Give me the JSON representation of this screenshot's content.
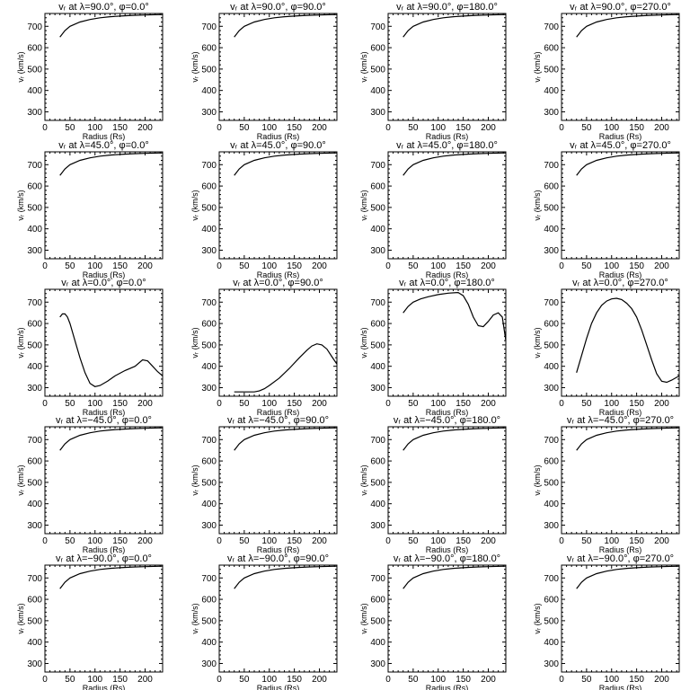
{
  "chart_data": [
    {
      "type": "line",
      "title": "vᵣ at λ=90.0°, φ=0.0°",
      "xlabel": "Radius (Rs)",
      "ylabel": "vᵣ (km/s)",
      "xlim": [
        0,
        235
      ],
      "ylim": [
        260,
        760
      ],
      "xticks": [
        0,
        50,
        100,
        150,
        200
      ],
      "yticks": [
        300,
        400,
        500,
        600,
        700
      ],
      "series": [
        {
          "x": [
            30,
            40,
            50,
            70,
            90,
            110,
            130,
            150,
            175,
            200,
            235
          ],
          "values": [
            650,
            680,
            700,
            720,
            732,
            740,
            745,
            748,
            751,
            753,
            755
          ]
        }
      ]
    },
    {
      "type": "line",
      "title": "vᵣ at λ=90.0°, φ=90.0°",
      "xlabel": "Radius (Rs)",
      "ylabel": "vᵣ (km/s)",
      "xlim": [
        0,
        235
      ],
      "ylim": [
        260,
        760
      ],
      "xticks": [
        0,
        50,
        100,
        150,
        200
      ],
      "yticks": [
        300,
        400,
        500,
        600,
        700
      ],
      "series": [
        {
          "x": [
            30,
            40,
            50,
            70,
            90,
            110,
            130,
            150,
            175,
            200,
            235
          ],
          "values": [
            650,
            680,
            700,
            720,
            732,
            740,
            745,
            748,
            751,
            753,
            755
          ]
        }
      ]
    },
    {
      "type": "line",
      "title": "vᵣ at λ=90.0°, φ=180.0°",
      "xlabel": "Radius (Rs)",
      "ylabel": "vᵣ (km/s)",
      "xlim": [
        0,
        235
      ],
      "ylim": [
        260,
        760
      ],
      "xticks": [
        0,
        50,
        100,
        150,
        200
      ],
      "yticks": [
        300,
        400,
        500,
        600,
        700
      ],
      "series": [
        {
          "x": [
            30,
            40,
            50,
            70,
            90,
            110,
            130,
            150,
            175,
            200,
            235
          ],
          "values": [
            650,
            680,
            700,
            720,
            732,
            740,
            745,
            748,
            751,
            753,
            755
          ]
        }
      ]
    },
    {
      "type": "line",
      "title": "vᵣ at λ=90.0°, φ=270.0°",
      "xlabel": "Radius (Rs)",
      "ylabel": "vᵣ (km/s)",
      "xlim": [
        0,
        235
      ],
      "ylim": [
        260,
        760
      ],
      "xticks": [
        0,
        50,
        100,
        150,
        200
      ],
      "yticks": [
        300,
        400,
        500,
        600,
        700
      ],
      "series": [
        {
          "x": [
            30,
            40,
            50,
            70,
            90,
            110,
            130,
            150,
            175,
            200,
            235
          ],
          "values": [
            650,
            680,
            700,
            720,
            732,
            740,
            745,
            748,
            751,
            753,
            755
          ]
        }
      ]
    },
    {
      "type": "line",
      "title": "vᵣ at λ=45.0°, φ=0.0°",
      "xlabel": "Radius (Rs)",
      "ylabel": "vᵣ (km/s)",
      "xlim": [
        0,
        235
      ],
      "ylim": [
        260,
        760
      ],
      "xticks": [
        0,
        50,
        100,
        150,
        200
      ],
      "yticks": [
        300,
        400,
        500,
        600,
        700
      ],
      "series": [
        {
          "x": [
            30,
            40,
            50,
            70,
            90,
            110,
            130,
            150,
            175,
            200,
            235
          ],
          "values": [
            650,
            680,
            700,
            720,
            732,
            740,
            745,
            748,
            751,
            753,
            755
          ]
        }
      ]
    },
    {
      "type": "line",
      "title": "vᵣ at λ=45.0°, φ=90.0°",
      "xlabel": "Radius (Rs)",
      "ylabel": "vᵣ (km/s)",
      "xlim": [
        0,
        235
      ],
      "ylim": [
        260,
        760
      ],
      "xticks": [
        0,
        50,
        100,
        150,
        200
      ],
      "yticks": [
        300,
        400,
        500,
        600,
        700
      ],
      "series": [
        {
          "x": [
            30,
            40,
            50,
            70,
            90,
            110,
            130,
            150,
            175,
            200,
            235
          ],
          "values": [
            650,
            680,
            700,
            720,
            732,
            740,
            745,
            748,
            751,
            753,
            755
          ]
        }
      ]
    },
    {
      "type": "line",
      "title": "vᵣ at λ=45.0°, φ=180.0°",
      "xlabel": "Radius (Rs)",
      "ylabel": "vᵣ (km/s)",
      "xlim": [
        0,
        235
      ],
      "ylim": [
        260,
        760
      ],
      "xticks": [
        0,
        50,
        100,
        150,
        200
      ],
      "yticks": [
        300,
        400,
        500,
        600,
        700
      ],
      "series": [
        {
          "x": [
            30,
            40,
            50,
            70,
            90,
            110,
            130,
            150,
            175,
            200,
            235
          ],
          "values": [
            650,
            680,
            700,
            720,
            732,
            740,
            745,
            748,
            751,
            753,
            755
          ]
        }
      ]
    },
    {
      "type": "line",
      "title": "vᵣ at λ=45.0°, φ=270.0°",
      "xlabel": "Radius (Rs)",
      "ylabel": "vᵣ (km/s)",
      "xlim": [
        0,
        235
      ],
      "ylim": [
        260,
        760
      ],
      "xticks": [
        0,
        50,
        100,
        150,
        200
      ],
      "yticks": [
        300,
        400,
        500,
        600,
        700
      ],
      "series": [
        {
          "x": [
            30,
            40,
            50,
            70,
            90,
            110,
            130,
            150,
            175,
            200,
            235
          ],
          "values": [
            650,
            680,
            700,
            720,
            732,
            740,
            745,
            748,
            751,
            753,
            755
          ]
        }
      ]
    },
    {
      "type": "line",
      "title": "vᵣ at λ=0.0°, φ=0.0°",
      "xlabel": "Radius (Rs)",
      "ylabel": "vᵣ (km/s)",
      "xlim": [
        0,
        235
      ],
      "ylim": [
        260,
        760
      ],
      "xticks": [
        0,
        50,
        100,
        150,
        200
      ],
      "yticks": [
        300,
        400,
        500,
        600,
        700
      ],
      "series": [
        {
          "x": [
            30,
            35,
            40,
            45,
            50,
            60,
            70,
            80,
            90,
            100,
            110,
            125,
            140,
            160,
            180,
            195,
            205,
            215,
            225,
            235
          ],
          "values": [
            630,
            645,
            645,
            630,
            600,
            520,
            440,
            370,
            320,
            305,
            310,
            330,
            355,
            380,
            400,
            430,
            425,
            400,
            375,
            355
          ]
        }
      ]
    },
    {
      "type": "line",
      "title": "vᵣ at λ=0.0°, φ=90.0°",
      "xlabel": "Radius (Rs)",
      "ylabel": "vᵣ (km/s)",
      "xlim": [
        0,
        235
      ],
      "ylim": [
        260,
        760
      ],
      "xticks": [
        0,
        50,
        100,
        150,
        200
      ],
      "yticks": [
        300,
        400,
        500,
        600,
        700
      ],
      "series": [
        {
          "x": [
            30,
            40,
            50,
            60,
            70,
            80,
            90,
            100,
            120,
            140,
            160,
            175,
            185,
            195,
            205,
            215,
            225,
            235
          ],
          "values": [
            280,
            280,
            280,
            280,
            280,
            285,
            295,
            310,
            345,
            390,
            440,
            475,
            495,
            505,
            500,
            480,
            445,
            410
          ]
        }
      ]
    },
    {
      "type": "line",
      "title": "vᵣ at λ=0.0°, φ=180.0°",
      "xlabel": "Radius (Rs)",
      "ylabel": "vᵣ (km/s)",
      "xlim": [
        0,
        235
      ],
      "ylim": [
        260,
        760
      ],
      "xticks": [
        0,
        50,
        100,
        150,
        200
      ],
      "yticks": [
        300,
        400,
        500,
        600,
        700
      ],
      "series": [
        {
          "x": [
            30,
            40,
            50,
            65,
            80,
            100,
            120,
            140,
            150,
            160,
            170,
            180,
            190,
            200,
            210,
            220,
            228,
            235
          ],
          "values": [
            650,
            680,
            700,
            715,
            725,
            735,
            742,
            745,
            730,
            690,
            630,
            590,
            585,
            610,
            640,
            650,
            630,
            520
          ]
        }
      ]
    },
    {
      "type": "line",
      "title": "vᵣ at λ=0.0°, φ=270.0°",
      "xlabel": "Radius (Rs)",
      "ylabel": "vᵣ (km/s)",
      "xlim": [
        0,
        235
      ],
      "ylim": [
        260,
        760
      ],
      "xticks": [
        0,
        50,
        100,
        150,
        200
      ],
      "yticks": [
        300,
        400,
        500,
        600,
        700
      ],
      "series": [
        {
          "x": [
            30,
            40,
            50,
            60,
            70,
            80,
            90,
            100,
            110,
            120,
            130,
            140,
            150,
            160,
            170,
            180,
            190,
            200,
            210,
            220,
            235
          ],
          "values": [
            370,
            450,
            530,
            600,
            650,
            685,
            705,
            715,
            718,
            712,
            695,
            670,
            630,
            570,
            500,
            430,
            365,
            330,
            325,
            335,
            355
          ]
        }
      ]
    },
    {
      "type": "line",
      "title": "vᵣ at λ=−45.0°, φ=0.0°",
      "xlabel": "Radius (Rs)",
      "ylabel": "vᵣ (km/s)",
      "xlim": [
        0,
        235
      ],
      "ylim": [
        260,
        760
      ],
      "xticks": [
        0,
        50,
        100,
        150,
        200
      ],
      "yticks": [
        300,
        400,
        500,
        600,
        700
      ],
      "series": [
        {
          "x": [
            30,
            40,
            50,
            70,
            90,
            110,
            130,
            150,
            175,
            200,
            235
          ],
          "values": [
            650,
            680,
            700,
            720,
            732,
            740,
            745,
            748,
            751,
            753,
            755
          ]
        }
      ]
    },
    {
      "type": "line",
      "title": "vᵣ at λ=−45.0°, φ=90.0°",
      "xlabel": "Radius (Rs)",
      "ylabel": "vᵣ (km/s)",
      "xlim": [
        0,
        235
      ],
      "ylim": [
        260,
        760
      ],
      "xticks": [
        0,
        50,
        100,
        150,
        200
      ],
      "yticks": [
        300,
        400,
        500,
        600,
        700
      ],
      "series": [
        {
          "x": [
            30,
            40,
            50,
            70,
            90,
            110,
            130,
            150,
            175,
            200,
            235
          ],
          "values": [
            650,
            680,
            700,
            720,
            732,
            740,
            745,
            748,
            751,
            753,
            755
          ]
        }
      ]
    },
    {
      "type": "line",
      "title": "vᵣ at λ=−45.0°, φ=180.0°",
      "xlabel": "Radius (Rs)",
      "ylabel": "vᵣ (km/s)",
      "xlim": [
        0,
        235
      ],
      "ylim": [
        260,
        760
      ],
      "xticks": [
        0,
        50,
        100,
        150,
        200
      ],
      "yticks": [
        300,
        400,
        500,
        600,
        700
      ],
      "series": [
        {
          "x": [
            30,
            40,
            50,
            70,
            90,
            110,
            130,
            150,
            175,
            200,
            235
          ],
          "values": [
            650,
            680,
            700,
            720,
            732,
            740,
            745,
            748,
            751,
            753,
            755
          ]
        }
      ]
    },
    {
      "type": "line",
      "title": "vᵣ at λ=−45.0°, φ=270.0°",
      "xlabel": "Radius (Rs)",
      "ylabel": "vᵣ (km/s)",
      "xlim": [
        0,
        235
      ],
      "ylim": [
        260,
        760
      ],
      "xticks": [
        0,
        50,
        100,
        150,
        200
      ],
      "yticks": [
        300,
        400,
        500,
        600,
        700
      ],
      "series": [
        {
          "x": [
            30,
            40,
            50,
            70,
            90,
            110,
            130,
            150,
            175,
            200,
            235
          ],
          "values": [
            650,
            680,
            700,
            720,
            732,
            740,
            745,
            748,
            751,
            753,
            755
          ]
        }
      ]
    },
    {
      "type": "line",
      "title": "vᵣ at λ=−90.0°, φ=0.0°",
      "xlabel": "Radius (Rs)",
      "ylabel": "vᵣ (km/s)",
      "xlim": [
        0,
        235
      ],
      "ylim": [
        260,
        760
      ],
      "xticks": [
        0,
        50,
        100,
        150,
        200
      ],
      "yticks": [
        300,
        400,
        500,
        600,
        700
      ],
      "series": [
        {
          "x": [
            30,
            40,
            50,
            70,
            90,
            110,
            130,
            150,
            175,
            200,
            235
          ],
          "values": [
            650,
            680,
            700,
            720,
            732,
            740,
            745,
            748,
            751,
            753,
            755
          ]
        }
      ]
    },
    {
      "type": "line",
      "title": "vᵣ at λ=−90.0°, φ=90.0°",
      "xlabel": "Radius (Rs)",
      "ylabel": "vᵣ (km/s)",
      "xlim": [
        0,
        235
      ],
      "ylim": [
        260,
        760
      ],
      "xticks": [
        0,
        50,
        100,
        150,
        200
      ],
      "yticks": [
        300,
        400,
        500,
        600,
        700
      ],
      "series": [
        {
          "x": [
            30,
            40,
            50,
            70,
            90,
            110,
            130,
            150,
            175,
            200,
            235
          ],
          "values": [
            650,
            680,
            700,
            720,
            732,
            740,
            745,
            748,
            751,
            753,
            755
          ]
        }
      ]
    },
    {
      "type": "line",
      "title": "vᵣ at λ=−90.0°, φ=180.0°",
      "xlabel": "Radius (Rs)",
      "ylabel": "vᵣ (km/s)",
      "xlim": [
        0,
        235
      ],
      "ylim": [
        260,
        760
      ],
      "xticks": [
        0,
        50,
        100,
        150,
        200
      ],
      "yticks": [
        300,
        400,
        500,
        600,
        700
      ],
      "series": [
        {
          "x": [
            30,
            40,
            50,
            70,
            90,
            110,
            130,
            150,
            175,
            200,
            235
          ],
          "values": [
            650,
            680,
            700,
            720,
            732,
            740,
            745,
            748,
            751,
            753,
            755
          ]
        }
      ]
    },
    {
      "type": "line",
      "title": "vᵣ at λ=−90.0°, φ=270.0°",
      "xlabel": "Radius (Rs)",
      "ylabel": "vᵣ (km/s)",
      "xlim": [
        0,
        235
      ],
      "ylim": [
        260,
        760
      ],
      "xticks": [
        0,
        50,
        100,
        150,
        200
      ],
      "yticks": [
        300,
        400,
        500,
        600,
        700
      ],
      "series": [
        {
          "x": [
            30,
            40,
            50,
            70,
            90,
            110,
            130,
            150,
            175,
            200,
            235
          ],
          "values": [
            650,
            680,
            700,
            720,
            732,
            740,
            745,
            748,
            751,
            753,
            755
          ]
        }
      ]
    }
  ]
}
